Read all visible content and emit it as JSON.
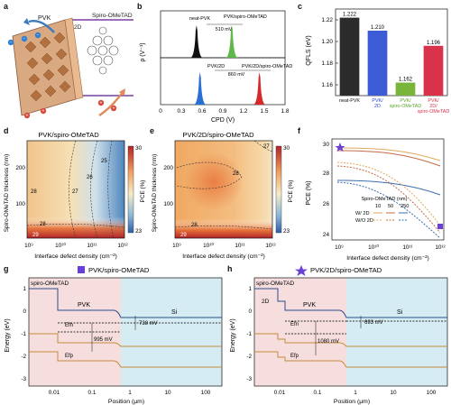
{
  "panel_letters": {
    "a": "a",
    "b": "b",
    "c": "c",
    "d": "d",
    "e": "e",
    "f": "f",
    "g": "g",
    "h": "h"
  },
  "panel_a": {
    "spiro_label": "Spiro-OMeTAD",
    "label_2d": "2D",
    "pvk_label": "PVK",
    "colors": {
      "pvk": "#cfa27a",
      "interface": "#e6b38e",
      "spiro": "#7a3fa0",
      "arrow": "#3b7bbd"
    }
  },
  "panel_b": {
    "ylabel": "ρ (V⁻¹)",
    "xlabel": "CPD (V)",
    "top_left_label": "neat-PVK",
    "top_right_label": "PVK/spiro-OMeTAD",
    "top_gap": "510 mV",
    "bot_left_label": "PVK/2D",
    "bot_right_label": "PVK/2D/spiro-OMeTAD",
    "bot_gap": "860 mV",
    "xticks": [
      "0",
      "0.3",
      "0.6",
      "0.9",
      "1.2",
      "1.5",
      "1.8"
    ],
    "peaks_top": [
      {
        "x": 0.52,
        "color": "#111111"
      },
      {
        "x": 1.03,
        "color": "#5fb84a"
      }
    ],
    "peaks_bot": [
      {
        "x": 0.57,
        "color": "#2a6fd6"
      },
      {
        "x": 1.43,
        "color": "#d62a2a"
      }
    ]
  },
  "chart_data": {
    "type": "bar",
    "ylabel": "QFLS (eV)",
    "categories": [
      "neat-PVK",
      "PVK/ 2D",
      "PVK/ spiro-OMeTAD",
      "PVK/ 2D/ spiro-OMeTAD"
    ],
    "values": [
      1.222,
      1.21,
      1.162,
      1.196
    ],
    "value_labels": [
      "1.222",
      "1.210",
      "1.162",
      "1.196"
    ],
    "colors": [
      "#2b2b2b",
      "#3c5cd6",
      "#79b53a",
      "#d8334a"
    ],
    "label_colors": [
      "#111111",
      "#2b4fd0",
      "#5ea32b",
      "#d8334a"
    ],
    "ylim": [
      1.15,
      1.23
    ],
    "yticks": [
      "1.16",
      "1.18",
      "1.20",
      "1.22"
    ]
  },
  "panel_d": {
    "title": "PVK/spiro-OMeTAD",
    "ylabel": "Spiro-OMeTAD thickness (nm)",
    "xlabel": "Interface defect density (cm⁻²)",
    "yticks": [
      "100",
      "200"
    ],
    "xticks": [
      "10⁹",
      "10¹⁰",
      "10¹¹",
      "10¹²"
    ],
    "contours": [
      "25",
      "26",
      "27",
      "28",
      "28",
      "29"
    ],
    "cbar_label": "PCE (%)",
    "cbar_max": "30",
    "cbar_min": "23"
  },
  "panel_e": {
    "title": "PVK/2D/spiro-OMeTAD",
    "ylabel": "Spiro-OMeTAD thickness (nm)",
    "xlabel": "Interface defect density (cm⁻²)",
    "yticks": [
      "100",
      "200"
    ],
    "xticks": [
      "10⁹",
      "10¹⁰",
      "10¹¹",
      "10¹²"
    ],
    "contours": [
      "27",
      "28",
      "28",
      "29"
    ],
    "cbar_label": "PCE (%)",
    "cbar_max": "30",
    "cbar_min": "23"
  },
  "panel_f": {
    "ylabel": "PCE (%)",
    "xlabel": "Interface defect density (cm⁻²)",
    "yticks": [
      "24",
      "26",
      "28",
      "30"
    ],
    "xticks": [
      "10⁹",
      "10¹⁰",
      "10¹¹",
      "10¹²"
    ],
    "legend_title": "Spiro-OMeTAD (nm)",
    "legend_cols": [
      "10",
      "50",
      "250"
    ],
    "legend_rows": [
      "W/ 2D",
      "W/O 2D"
    ],
    "colors": [
      "#e0a85a",
      "#c46a44",
      "#3c6db0"
    ]
  },
  "panel_g": {
    "title": "PVK/spiro-OMeTAD",
    "ylabel": "Energy (eV)",
    "xlabel": "Position (μm)",
    "spiro_label": "spiro-OMeTAD",
    "pvk_label": "PVK",
    "si_label": "Si",
    "efn_label": "Efn",
    "efp_label": "Efp",
    "gap_big": "995 mV",
    "gap_small": "738 mV",
    "yticks": [
      "1",
      "0",
      "-1",
      "-2",
      "-3"
    ],
    "xticks": [
      "0.01",
      "0.1",
      "1",
      "10",
      "100"
    ],
    "marker_color": "#6a3fd6"
  },
  "panel_h": {
    "title": "PVK/2D/spiro-OMeTAD",
    "ylabel": "Energy (eV)",
    "xlabel": "Position (μm)",
    "spiro_label": "spiro-OMeTAD",
    "label_2d": "2D",
    "pvk_label": "PVK",
    "si_label": "Si",
    "efn_label": "Efn",
    "efp_label": "Efp",
    "gap_big": "1080 mV",
    "gap_small": "693 mV",
    "yticks": [
      "1",
      "0",
      "-1",
      "-2",
      "-3"
    ],
    "xticks": [
      "0.01",
      "0.1",
      "1",
      "10",
      "100"
    ],
    "marker_color": "#6a3fd6"
  }
}
